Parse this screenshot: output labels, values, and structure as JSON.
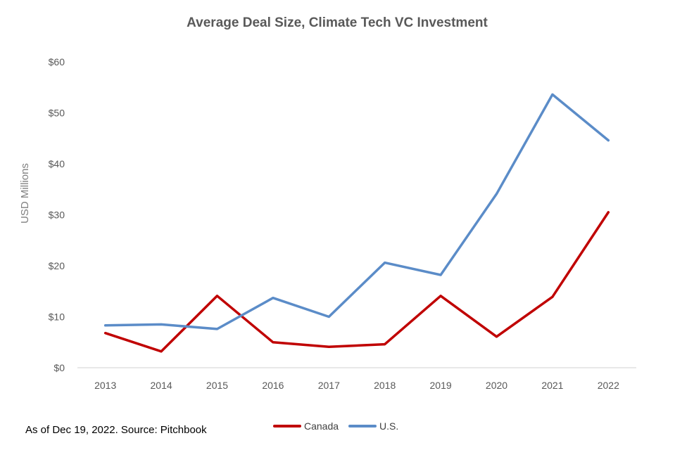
{
  "colors": {
    "canada": "#c00000",
    "us": "#5b8cc8",
    "axis": "#d9d9d9"
  },
  "chart_data": {
    "type": "line",
    "title": "Average Deal Size, Climate Tech VC Investment",
    "xlabel": "",
    "ylabel": "USD Millions",
    "categories": [
      "2013",
      "2014",
      "2015",
      "2016",
      "2017",
      "2018",
      "2019",
      "2020",
      "2021",
      "2022"
    ],
    "y_tick_labels": [
      "$0",
      "$10",
      "$20",
      "$30",
      "$40",
      "$50",
      "$60"
    ],
    "ylim": [
      0,
      60
    ],
    "grid": false,
    "legend_position": "bottom",
    "series": [
      {
        "name": "Canada",
        "color": "#c00000",
        "values": [
          6.8,
          3.2,
          14.1,
          5.0,
          4.1,
          4.6,
          14.1,
          6.1,
          13.9,
          30.5
        ]
      },
      {
        "name": "U.S.",
        "color": "#5b8cc8",
        "values": [
          8.3,
          8.5,
          7.6,
          13.7,
          10.0,
          20.6,
          18.2,
          34.1,
          53.6,
          44.6
        ]
      }
    ]
  },
  "footer": {
    "source_note": "As of Dec 19, 2022. Source: Pitchbook"
  }
}
